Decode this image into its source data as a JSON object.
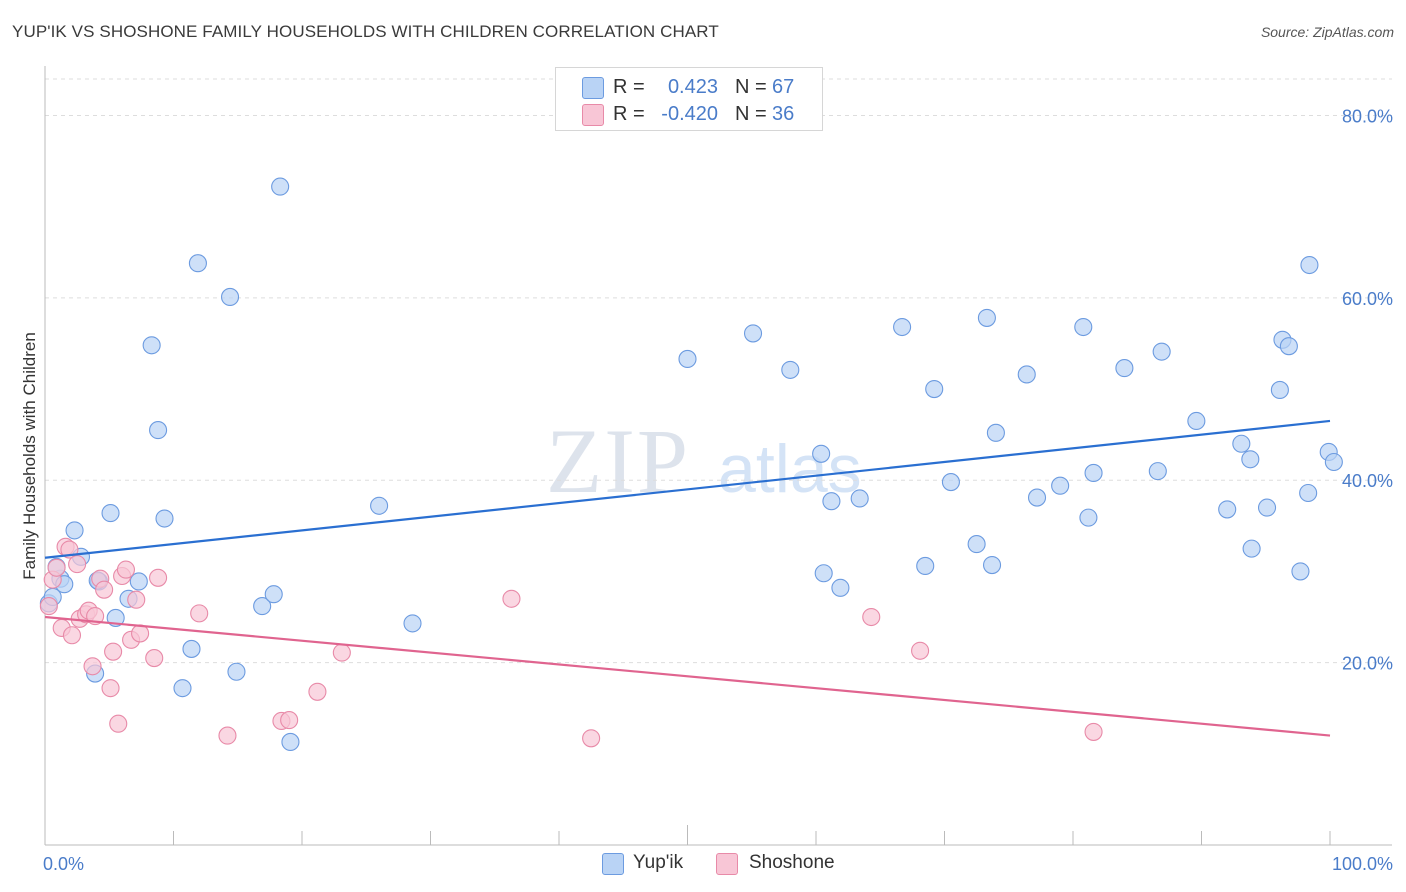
{
  "title": "YUP'IK VS SHOSHONE FAMILY HOUSEHOLDS WITH CHILDREN CORRELATION CHART",
  "source": "Source: ZipAtlas.com",
  "watermark": {
    "zip": "ZIP",
    "atlas": "atlas"
  },
  "legend_top": {
    "rows": [
      {
        "r_label": "R =",
        "r_value": "0.423",
        "n_label": "N =",
        "n_value": "67"
      },
      {
        "r_label": "R =",
        "r_value": "-0.420",
        "n_label": "N =",
        "n_value": "36"
      }
    ]
  },
  "legend_bottom": {
    "series1": "Yup'ik",
    "series2": "Shoshone"
  },
  "colors": {
    "yupik_fill": "#b9d3f5",
    "yupik_stroke": "#6c9be0",
    "yupik_line": "#2a6fd1",
    "shoshone_fill": "#f8c6d6",
    "shoshone_stroke": "#e88aa8",
    "shoshone_line": "#e0648f",
    "axis_text": "#4a7cc9",
    "grid": "#dddddd"
  },
  "chart_data": {
    "type": "scatter",
    "title": "YUP'IK VS SHOSHONE FAMILY HOUSEHOLDS WITH CHILDREN CORRELATION CHART",
    "xlabel": "",
    "ylabel": "Family Households with Children",
    "xlim": [
      0,
      100
    ],
    "ylim": [
      0,
      84
    ],
    "x_tick_labels": [
      "0.0%",
      "100.0%"
    ],
    "y_ticks": [
      20,
      40,
      60,
      80
    ],
    "y_tick_labels": [
      "20.0%",
      "40.0%",
      "60.0%",
      "80.0%"
    ],
    "grid": true,
    "series": [
      {
        "name": "Yup'ik",
        "r": 0.423,
        "n": 67,
        "trend": {
          "x": [
            0,
            100
          ],
          "y": [
            31.5,
            46.5
          ]
        },
        "points": [
          [
            0.3,
            26.5
          ],
          [
            0.6,
            27.2
          ],
          [
            1.2,
            29.2
          ],
          [
            1.5,
            28.6
          ],
          [
            2.3,
            34.5
          ],
          [
            2.8,
            31.6
          ],
          [
            4.2,
            28.9
          ],
          [
            5.1,
            36.4
          ],
          [
            5.5,
            24.9
          ],
          [
            7.3,
            28.9
          ],
          [
            8.3,
            54.8
          ],
          [
            8.8,
            45.5
          ],
          [
            9.3,
            35.8
          ],
          [
            10.7,
            17.2
          ],
          [
            11.4,
            21.5
          ],
          [
            11.9,
            63.8
          ],
          [
            14.4,
            60.1
          ],
          [
            14.9,
            19.0
          ],
          [
            16.9,
            26.2
          ],
          [
            17.8,
            27.5
          ],
          [
            18.3,
            72.2
          ],
          [
            19.1,
            11.3
          ],
          [
            26.0,
            37.2
          ],
          [
            28.6,
            24.3
          ],
          [
            3.9,
            18.8
          ],
          [
            4.1,
            29.0
          ],
          [
            50.0,
            53.3
          ],
          [
            55.1,
            56.1
          ],
          [
            58.0,
            52.1
          ],
          [
            60.4,
            42.9
          ],
          [
            60.6,
            29.8
          ],
          [
            61.2,
            37.7
          ],
          [
            61.9,
            28.2
          ],
          [
            63.4,
            38.0
          ],
          [
            66.7,
            56.8
          ],
          [
            68.5,
            30.6
          ],
          [
            69.2,
            50.0
          ],
          [
            70.5,
            39.8
          ],
          [
            72.5,
            33.0
          ],
          [
            73.3,
            57.8
          ],
          [
            73.7,
            30.7
          ],
          [
            74.0,
            45.2
          ],
          [
            76.4,
            51.6
          ],
          [
            77.2,
            38.1
          ],
          [
            79.0,
            39.4
          ],
          [
            80.8,
            56.8
          ],
          [
            81.2,
            35.9
          ],
          [
            81.6,
            40.8
          ],
          [
            84.0,
            52.3
          ],
          [
            86.6,
            41.0
          ],
          [
            86.9,
            54.1
          ],
          [
            89.6,
            46.5
          ],
          [
            92.0,
            36.8
          ],
          [
            93.1,
            44.0
          ],
          [
            93.8,
            42.3
          ],
          [
            93.9,
            32.5
          ],
          [
            95.1,
            37.0
          ],
          [
            96.1,
            49.9
          ],
          [
            96.3,
            55.4
          ],
          [
            96.8,
            54.7
          ],
          [
            97.7,
            30.0
          ],
          [
            98.3,
            38.6
          ],
          [
            98.4,
            63.6
          ],
          [
            99.9,
            43.1
          ],
          [
            100.3,
            42.0
          ],
          [
            0.9,
            30.5
          ],
          [
            6.5,
            27.0
          ]
        ]
      },
      {
        "name": "Shoshone",
        "r": -0.42,
        "n": 36,
        "trend": {
          "x": [
            0,
            100
          ],
          "y": [
            25.0,
            12.0
          ]
        },
        "points": [
          [
            0.3,
            26.2
          ],
          [
            0.6,
            29.1
          ],
          [
            0.9,
            30.4
          ],
          [
            1.3,
            23.8
          ],
          [
            1.6,
            32.7
          ],
          [
            1.9,
            32.4
          ],
          [
            2.1,
            23.0
          ],
          [
            2.5,
            30.8
          ],
          [
            2.7,
            24.8
          ],
          [
            3.2,
            25.3
          ],
          [
            3.4,
            25.7
          ],
          [
            3.7,
            19.6
          ],
          [
            3.9,
            25.1
          ],
          [
            4.3,
            29.2
          ],
          [
            4.6,
            28.0
          ],
          [
            5.1,
            17.2
          ],
          [
            5.3,
            21.2
          ],
          [
            5.7,
            13.3
          ],
          [
            6.0,
            29.5
          ],
          [
            6.3,
            30.2
          ],
          [
            6.7,
            22.5
          ],
          [
            7.1,
            26.9
          ],
          [
            7.4,
            23.2
          ],
          [
            8.5,
            20.5
          ],
          [
            8.8,
            29.3
          ],
          [
            12.0,
            25.4
          ],
          [
            14.2,
            12.0
          ],
          [
            18.4,
            13.6
          ],
          [
            19.0,
            13.7
          ],
          [
            21.2,
            16.8
          ],
          [
            23.1,
            21.1
          ],
          [
            36.3,
            27.0
          ],
          [
            42.5,
            11.7
          ],
          [
            64.3,
            25.0
          ],
          [
            68.1,
            21.3
          ],
          [
            81.6,
            12.4
          ]
        ]
      }
    ]
  }
}
